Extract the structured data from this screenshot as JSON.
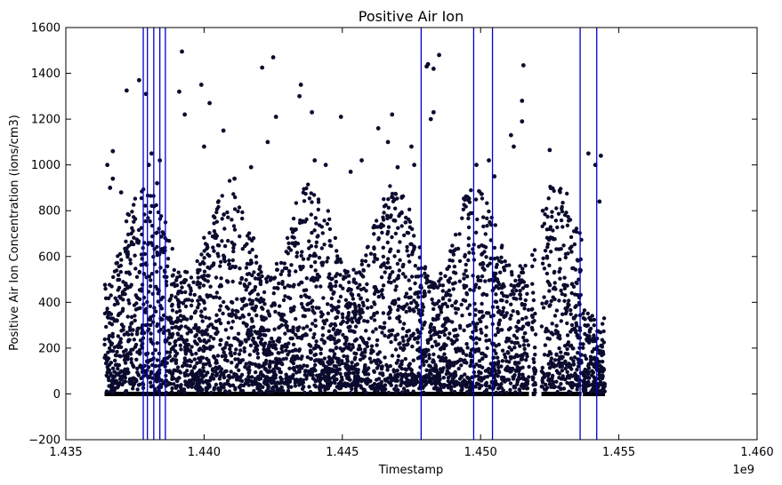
{
  "chart_data": {
    "type": "scatter",
    "title": "Positive Air Ion",
    "xlabel": "Timestamp",
    "ylabel": "Positive Air Ion Concentration (ions/cm3)",
    "x_offset_label": "1e9",
    "xlim": [
      1435000000,
      1460000000
    ],
    "ylim": [
      -200,
      1600
    ],
    "x_tick_values": [
      1435000000,
      1440000000,
      1445000000,
      1450000000,
      1455000000,
      1460000000
    ],
    "x_tick_labels": [
      "1.435",
      "1.440",
      "1.445",
      "1.450",
      "1.455",
      "1.460"
    ],
    "y_tick_values": [
      -200,
      0,
      200,
      400,
      600,
      800,
      1000,
      1200,
      1400,
      1600
    ],
    "y_tick_labels": [
      "−200",
      "0",
      "200",
      "400",
      "600",
      "800",
      "1000",
      "1200",
      "1400",
      "1600"
    ],
    "grid": false,
    "colors": {
      "points": "#0b0b2e",
      "vlines": "#0000cc",
      "axes": "#000000"
    },
    "data_extent": [
      1436400000,
      1454500000
    ],
    "data_gaps": [
      [
        1451750000,
        1451850000
      ],
      [
        1452000000,
        1452200000
      ],
      [
        1453650000,
        1453700000
      ]
    ],
    "vertical_lines_x": [
      1437800000,
      1437950000,
      1438180000,
      1438400000,
      1438600000,
      1447850000,
      1449750000,
      1450430000,
      1453600000,
      1454200000
    ],
    "points": [
      [
        1436500000,
        1000
      ],
      [
        1436700000,
        1060
      ],
      [
        1437200000,
        1325
      ],
      [
        1437650000,
        1370
      ],
      [
        1437900000,
        1310
      ],
      [
        1438100000,
        1050
      ],
      [
        1438400000,
        1020
      ],
      [
        1439200000,
        1495
      ],
      [
        1439100000,
        1320
      ],
      [
        1439900000,
        1350
      ],
      [
        1440200000,
        1270
      ],
      [
        1439300000,
        1220
      ],
      [
        1440700000,
        1150
      ],
      [
        1442100000,
        1425
      ],
      [
        1442500000,
        1470
      ],
      [
        1443500000,
        1350
      ],
      [
        1443450000,
        1300
      ],
      [
        1442600000,
        1210
      ],
      [
        1443900000,
        1230
      ],
      [
        1444400000,
        1000
      ],
      [
        1444950000,
        1210
      ],
      [
        1445300000,
        970
      ],
      [
        1446300000,
        1160
      ],
      [
        1446650000,
        1100
      ],
      [
        1446800000,
        1220
      ],
      [
        1447500000,
        1080
      ],
      [
        1447600000,
        1000
      ],
      [
        1448050000,
        1430
      ],
      [
        1448100000,
        1440
      ],
      [
        1448300000,
        1420
      ],
      [
        1448500000,
        1480
      ],
      [
        1448300000,
        1230
      ],
      [
        1448200000,
        1200
      ],
      [
        1449850000,
        1000
      ],
      [
        1450300000,
        1020
      ],
      [
        1450500000,
        950
      ],
      [
        1451100000,
        1130
      ],
      [
        1451200000,
        1080
      ],
      [
        1451500000,
        1280
      ],
      [
        1451550000,
        1435
      ],
      [
        1451500000,
        1190
      ],
      [
        1452250000,
        800
      ],
      [
        1452500000,
        1065
      ],
      [
        1452600000,
        680
      ],
      [
        1453900000,
        1050
      ],
      [
        1454150000,
        1000
      ],
      [
        1454350000,
        1040
      ],
      [
        1454300000,
        840
      ],
      [
        1436700000,
        940
      ],
      [
        1437000000,
        880
      ],
      [
        1436600000,
        900
      ],
      [
        1438000000,
        1000
      ],
      [
        1438300000,
        920
      ],
      [
        1440000000,
        1080
      ],
      [
        1441100000,
        940
      ],
      [
        1441700000,
        990
      ],
      [
        1442300000,
        1100
      ],
      [
        1444000000,
        1020
      ],
      [
        1445700000,
        1020
      ],
      [
        1447000000,
        990
      ]
    ]
  }
}
